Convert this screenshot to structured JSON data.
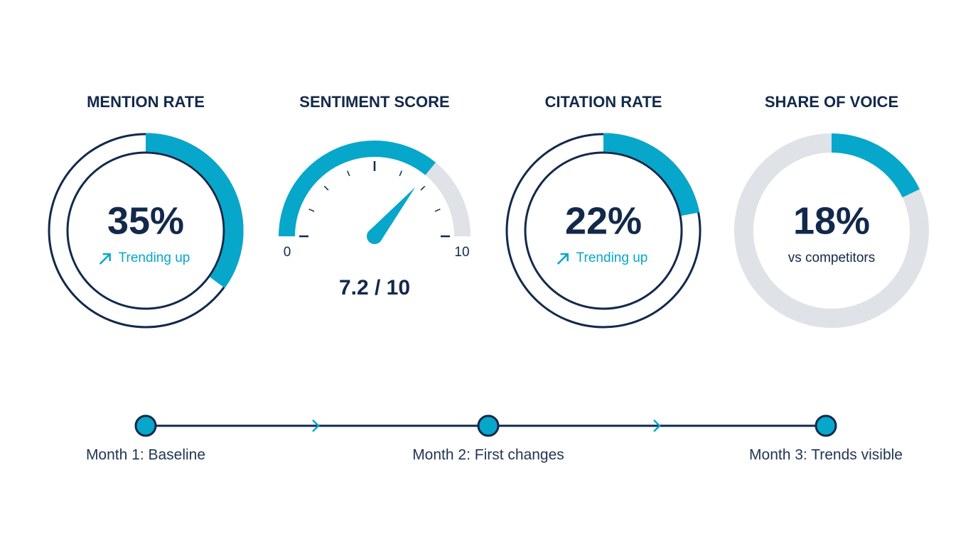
{
  "chart_data": [
    {
      "type": "donut",
      "title": "MENTION RATE",
      "values": [
        35
      ],
      "value_labels": [
        "35%"
      ],
      "subtitle": "Trending up",
      "ylim": [
        0,
        100
      ],
      "color": "#06a7ca",
      "outline_color": "#13294b",
      "trend": "up"
    },
    {
      "type": "gauge",
      "title": "SENTIMENT SCORE",
      "values": [
        7.2
      ],
      "value_labels": [
        "7.2 / 10"
      ],
      "ylim": [
        0,
        10
      ],
      "yticks": [
        0,
        10
      ],
      "color": "#06a7ca",
      "track_color": "#dfe2e6"
    },
    {
      "type": "donut",
      "title": "CITATION RATE",
      "values": [
        22
      ],
      "value_labels": [
        "22%"
      ],
      "subtitle": "Trending up",
      "ylim": [
        0,
        100
      ],
      "color": "#06a7ca",
      "outline_color": "#13294b",
      "trend": "up"
    },
    {
      "type": "donut",
      "title": "SHARE OF VOICE",
      "values": [
        18
      ],
      "value_labels": [
        "18%"
      ],
      "subtitle": "vs competitors",
      "ylim": [
        0,
        100
      ],
      "color": "#06a7ca",
      "track_color": "#dfe2e6"
    }
  ],
  "timeline": {
    "steps": [
      "Month 1: Baseline",
      "Month 2: First changes",
      "Month 3: Trends visible"
    ]
  }
}
